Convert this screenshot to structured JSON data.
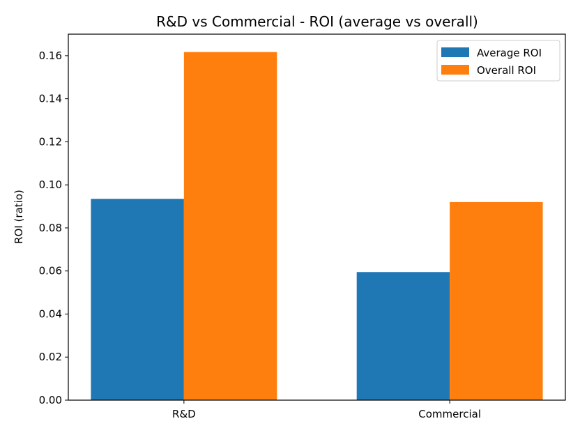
{
  "chart_data": {
    "type": "bar",
    "title": "R&D vs Commercial - ROI (average vs overall)",
    "xlabel": "",
    "ylabel": "ROI (ratio)",
    "categories": [
      "R&D",
      "Commercial"
    ],
    "series": [
      {
        "name": "Average ROI",
        "color": "#1f77b4",
        "values": [
          0.0935,
          0.0595
        ]
      },
      {
        "name": "Overall ROI",
        "color": "#ff7f0e",
        "values": [
          0.1617,
          0.092
        ]
      }
    ],
    "ylim": [
      0,
      0.17
    ],
    "yticks": [
      0.0,
      0.02,
      0.04,
      0.06,
      0.08,
      0.1,
      0.12,
      0.14,
      0.16
    ],
    "ytick_labels": [
      "0.00",
      "0.02",
      "0.04",
      "0.06",
      "0.08",
      "0.10",
      "0.12",
      "0.14",
      "0.16"
    ],
    "grid": false,
    "legend_position": "top-right"
  }
}
